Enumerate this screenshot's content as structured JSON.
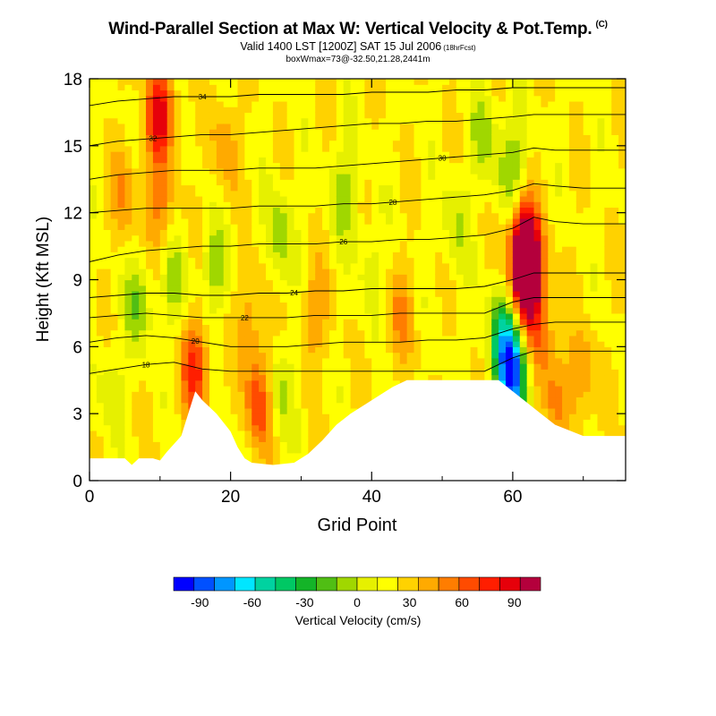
{
  "header": {
    "title": "Wind-Parallel Section at Max W: Vertical Velocity & Pot.Temp.",
    "mark": "(C)",
    "subtitle": "Valid 1400 LST [1200Z] SAT 15 Jul 2006",
    "subtitle_small": "(18hrFcst)",
    "info": "boxWmax=73@-32.50,21.28,2441m"
  },
  "chart_data": {
    "type": "heatmap",
    "title": "Wind-Parallel Section at Max W: Vertical Velocity & Pot.Temp.",
    "xlabel": "Grid Point",
    "ylabel": "Height (Kft MSL)",
    "xlim": [
      0,
      76
    ],
    "ylim": [
      0,
      18
    ],
    "xticks": [
      0,
      20,
      40,
      60
    ],
    "yticks": [
      0,
      3,
      6,
      9,
      12,
      15,
      18
    ],
    "grid": false,
    "colorbar": {
      "label": "Vertical Velocity (cm/s)",
      "range": [
        -105,
        105
      ],
      "step": 10,
      "tick_values": [
        -90,
        -60,
        -30,
        0,
        30,
        60,
        90
      ],
      "colors": [
        "#0000ff",
        "#0050ff",
        "#0096ff",
        "#00e6ff",
        "#00d2a0",
        "#00c864",
        "#14b428",
        "#50be14",
        "#a0d700",
        "#e6f000",
        "#ffff00",
        "#ffd200",
        "#ffaa00",
        "#ff7d00",
        "#ff4b00",
        "#ff1e00",
        "#e6000a",
        "#b4003c"
      ]
    },
    "terrain_kft": [
      [
        0,
        1.0
      ],
      [
        5,
        1.0
      ],
      [
        6,
        0.7
      ],
      [
        7,
        1.0
      ],
      [
        9,
        1.0
      ],
      [
        10,
        0.9
      ],
      [
        11,
        1.3
      ],
      [
        13,
        2.0
      ],
      [
        14,
        3.0
      ],
      [
        15,
        4.0
      ],
      [
        16,
        3.6
      ],
      [
        18,
        3.0
      ],
      [
        20,
        2.2
      ],
      [
        21,
        1.5
      ],
      [
        22,
        1.0
      ],
      [
        23,
        0.8
      ],
      [
        26,
        0.7
      ],
      [
        29,
        0.8
      ],
      [
        31,
        1.2
      ],
      [
        33,
        1.8
      ],
      [
        35,
        2.5
      ],
      [
        37,
        3.0
      ],
      [
        39,
        3.4
      ],
      [
        41,
        3.8
      ],
      [
        43,
        4.2
      ],
      [
        45,
        4.5
      ],
      [
        50,
        4.5
      ],
      [
        55,
        4.5
      ],
      [
        58,
        4.5
      ],
      [
        60,
        4.0
      ],
      [
        62,
        3.5
      ],
      [
        64,
        3.0
      ],
      [
        66,
        2.5
      ],
      [
        70,
        2.0
      ],
      [
        76,
        2.0
      ]
    ],
    "theta_contours_c": [
      {
        "value": 18,
        "heights_kft": [
          4.8,
          5.0,
          5.2,
          5.3,
          5.0,
          4.9,
          4.9,
          4.9,
          4.9,
          4.9,
          4.9,
          4.9,
          4.9,
          4.9,
          4.9,
          5.5,
          5.8,
          5.8,
          5.8,
          5.8
        ]
      },
      {
        "value": 20,
        "heights_kft": [
          6.2,
          6.4,
          6.5,
          6.4,
          6.2,
          6.0,
          6.0,
          6.0,
          6.1,
          6.2,
          6.2,
          6.2,
          6.3,
          6.3,
          6.4,
          6.8,
          7.0,
          7.1,
          7.1,
          7.1
        ]
      },
      {
        "value": 22,
        "heights_kft": [
          7.3,
          7.4,
          7.5,
          7.4,
          7.3,
          7.3,
          7.3,
          7.3,
          7.4,
          7.4,
          7.4,
          7.5,
          7.5,
          7.5,
          7.5,
          8.0,
          8.2,
          8.2,
          8.2,
          8.2
        ]
      },
      {
        "value": 24,
        "heights_kft": [
          8.2,
          8.3,
          8.4,
          8.4,
          8.3,
          8.3,
          8.4,
          8.4,
          8.5,
          8.5,
          8.6,
          8.6,
          8.6,
          8.6,
          8.7,
          9.0,
          9.3,
          9.3,
          9.3,
          9.3
        ]
      },
      {
        "value": 26,
        "heights_kft": [
          9.8,
          10.1,
          10.3,
          10.4,
          10.5,
          10.5,
          10.6,
          10.6,
          10.6,
          10.7,
          10.7,
          10.8,
          10.8,
          10.9,
          11.0,
          11.3,
          11.8,
          11.6,
          11.5,
          11.5
        ]
      },
      {
        "value": 28,
        "heights_kft": [
          12.0,
          12.1,
          12.2,
          12.2,
          12.2,
          12.2,
          12.3,
          12.3,
          12.3,
          12.4,
          12.4,
          12.5,
          12.6,
          12.7,
          12.8,
          13.0,
          13.3,
          13.2,
          13.1,
          13.1
        ]
      },
      {
        "value": 30,
        "heights_kft": [
          13.5,
          13.7,
          13.8,
          13.9,
          13.9,
          13.9,
          14.0,
          14.0,
          14.0,
          14.1,
          14.2,
          14.3,
          14.4,
          14.5,
          14.6,
          14.7,
          14.9,
          14.8,
          14.8,
          14.8
        ]
      },
      {
        "value": 32,
        "heights_kft": [
          15.0,
          15.2,
          15.3,
          15.4,
          15.5,
          15.5,
          15.6,
          15.7,
          15.8,
          15.9,
          16.0,
          16.0,
          16.1,
          16.1,
          16.2,
          16.3,
          16.4,
          16.4,
          16.4,
          16.4
        ]
      },
      {
        "value": 34,
        "heights_kft": [
          16.8,
          17.0,
          17.1,
          17.2,
          17.2,
          17.2,
          17.3,
          17.3,
          17.3,
          17.3,
          17.4,
          17.4,
          17.4,
          17.5,
          17.5,
          17.6,
          17.6,
          17.6,
          17.6,
          17.6
        ]
      }
    ],
    "contour_x_grid": [
      0,
      4,
      8,
      12,
      16,
      20,
      24,
      28,
      32,
      36,
      40,
      44,
      48,
      52,
      56,
      60,
      63,
      66,
      70,
      76
    ],
    "w_features": [
      {
        "x": 62,
        "z_kft": 9.3,
        "w_cm_s": 95
      },
      {
        "x": 61.5,
        "z_kft": 10.5,
        "w_cm_s": 60
      },
      {
        "x": 60,
        "z_kft": 4.7,
        "w_cm_s": -90
      },
      {
        "x": 58.5,
        "z_kft": 6.5,
        "w_cm_s": -45
      },
      {
        "x": 10,
        "z_kft": 16.5,
        "w_cm_s": 55
      },
      {
        "x": 10,
        "z_kft": 12.0,
        "w_cm_s": 25
      },
      {
        "x": 5,
        "z_kft": 13.0,
        "w_cm_s": 20
      },
      {
        "x": 15,
        "z_kft": 5.0,
        "w_cm_s": 45
      },
      {
        "x": 24,
        "z_kft": 3.5,
        "w_cm_s": 40
      },
      {
        "x": 23,
        "z_kft": 7.5,
        "w_cm_s": 20
      },
      {
        "x": 19,
        "z_kft": 15.0,
        "w_cm_s": 18
      },
      {
        "x": 32,
        "z_kft": 7.5,
        "w_cm_s": 20
      },
      {
        "x": 44,
        "z_kft": 7.5,
        "w_cm_s": 20
      },
      {
        "x": 64,
        "z_kft": 6.8,
        "w_cm_s": 28
      },
      {
        "x": 66,
        "z_kft": 3.8,
        "w_cm_s": 22
      },
      {
        "x": 70,
        "z_kft": 4.5,
        "w_cm_s": 20
      },
      {
        "x": 7,
        "z_kft": 8.0,
        "w_cm_s": -25
      },
      {
        "x": 12,
        "z_kft": 9.0,
        "w_cm_s": -20
      },
      {
        "x": 27,
        "z_kft": 11.0,
        "w_cm_s": -25
      },
      {
        "x": 36,
        "z_kft": 13.0,
        "w_cm_s": -22
      },
      {
        "x": 56,
        "z_kft": 15.5,
        "w_cm_s": -20
      },
      {
        "x": 60,
        "z_kft": 14.0,
        "w_cm_s": -28
      },
      {
        "x": 52,
        "z_kft": 11.5,
        "w_cm_s": -18
      },
      {
        "x": 40,
        "z_kft": 9.5,
        "w_cm_s": -15
      },
      {
        "x": 18,
        "z_kft": 9.5,
        "w_cm_s": -22
      },
      {
        "x": 27,
        "z_kft": 4.0,
        "w_cm_s": -20
      },
      {
        "x": 3,
        "z_kft": 4.0,
        "w_cm_s": -15
      }
    ],
    "background_w_cm_s": 3
  }
}
